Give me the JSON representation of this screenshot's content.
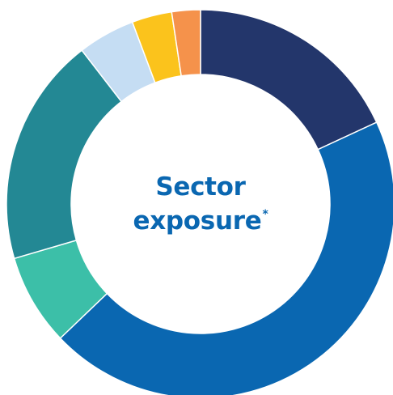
{
  "chart_data": {
    "type": "pie",
    "title": "Sector exposure",
    "title_line1": "Sector",
    "title_line2": "exposure",
    "title_mark": "*",
    "donut": true,
    "categories": [
      "",
      "",
      "",
      "",
      "",
      "",
      ""
    ],
    "values": [
      19.0,
      47.0,
      8.0,
      20.0,
      5.0,
      3.5,
      2.5
    ],
    "colors": [
      "#23366b",
      "#0a67b1",
      "#3cbfa8",
      "#238894",
      "#c5ddf3",
      "#fbc31c",
      "#f5924b"
    ],
    "start": "12 o'clock",
    "direction": "clockwise"
  }
}
